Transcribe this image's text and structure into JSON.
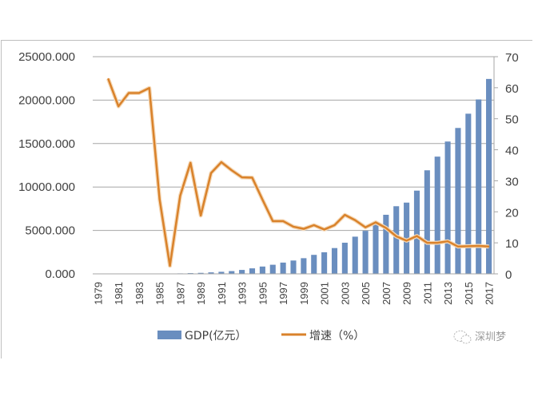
{
  "chart_data": {
    "type": "bar+line",
    "title": "",
    "categories": [
      "1979",
      "1980",
      "1981",
      "1982",
      "1983",
      "1984",
      "1985",
      "1986",
      "1987",
      "1988",
      "1989",
      "1990",
      "1991",
      "1992",
      "1993",
      "1994",
      "1995",
      "1996",
      "1997",
      "1998",
      "1999",
      "2000",
      "2001",
      "2002",
      "2003",
      "2004",
      "2005",
      "2006",
      "2007",
      "2008",
      "2009",
      "2010",
      "2011",
      "2012",
      "2013",
      "2014",
      "2015",
      "2016",
      "2017"
    ],
    "x_tick_labels": [
      "1979",
      "1981",
      "1983",
      "1985",
      "1987",
      "1989",
      "1991",
      "1993",
      "1995",
      "1997",
      "1999",
      "2001",
      "2003",
      "2005",
      "2007",
      "2009",
      "2011",
      "2013",
      "2015",
      "2017"
    ],
    "series": [
      {
        "name": "GDP(亿元）",
        "type": "bar",
        "axis": "left",
        "color": "#6a8ebf",
        "values": [
          1.96,
          2.7,
          4.96,
          8.26,
          13.12,
          23.42,
          39.02,
          41.65,
          55.9,
          86.98,
          115.66,
          171.67,
          236.66,
          317.32,
          453.14,
          634.67,
          842.48,
          1048.44,
          1297.42,
          1534.73,
          1804.02,
          2187.45,
          2482.49,
          2969.52,
          3585.72,
          4282.14,
          4950.91,
          5813.56,
          6801.57,
          7786.79,
          8201.32,
          9581.51,
          11922.81,
          13496.27,
          15234.22,
          16795.35,
          18436.84,
          20079.7,
          22438.39
        ]
      },
      {
        "name": "增速（%）",
        "type": "line",
        "axis": "right",
        "color": "#d9822b",
        "values": [
          null,
          62.9,
          54.0,
          58.3,
          58.3,
          59.9,
          24.0,
          2.6,
          25.2,
          35.8,
          18.8,
          32.5,
          36.0,
          33.4,
          31.1,
          31.0,
          23.9,
          17.0,
          17.0,
          15.2,
          14.5,
          15.7,
          14.3,
          15.7,
          19.0,
          17.3,
          15.0,
          16.6,
          14.8,
          12.1,
          10.7,
          12.2,
          10.0,
          10.0,
          10.5,
          8.8,
          8.9,
          9.0,
          8.8
        ]
      }
    ],
    "y_left": {
      "ylim": [
        0,
        25000
      ],
      "ticks": [
        "0.000",
        "5000.000",
        "10000.000",
        "15000.000",
        "20000.000",
        "25000.000"
      ]
    },
    "y_right": {
      "ylim": [
        0,
        70
      ],
      "ticks": [
        "0",
        "10",
        "20",
        "30",
        "40",
        "50",
        "60",
        "70"
      ]
    },
    "xlabel": "",
    "ylabel": "",
    "grid": true,
    "legend": {
      "position": "bottom",
      "entries": [
        "GDP(亿元）",
        "增速（%）"
      ]
    }
  },
  "watermark": {
    "text": "深圳梦",
    "icon": "wechat-icon"
  }
}
